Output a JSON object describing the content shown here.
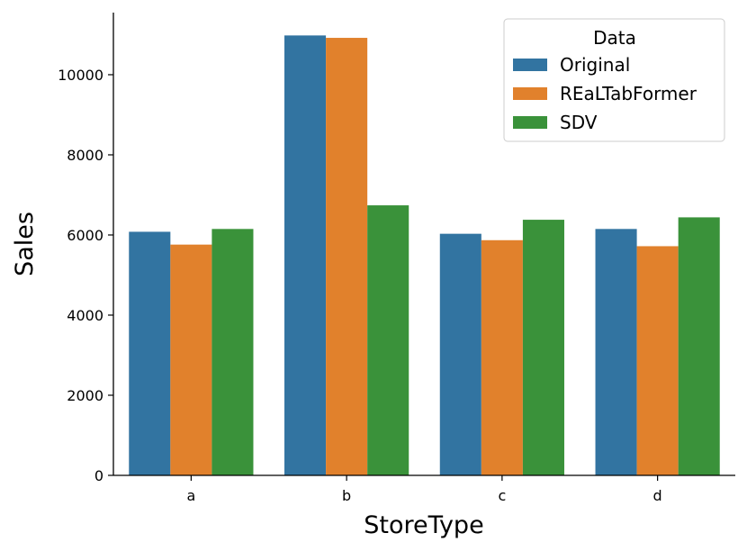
{
  "chart_data": {
    "type": "bar",
    "categories": [
      "a",
      "b",
      "c",
      "d"
    ],
    "series": [
      {
        "name": "Original",
        "color": "#3274a1",
        "values": [
          6080,
          10980,
          6030,
          6150
        ]
      },
      {
        "name": "REaLTabFormer",
        "color": "#e1812c",
        "values": [
          5760,
          10920,
          5870,
          5720
        ]
      },
      {
        "name": "SDV",
        "color": "#3a923a",
        "values": [
          6150,
          6740,
          6380,
          6440
        ]
      }
    ],
    "xlabel": "StoreType",
    "ylabel": "Sales",
    "ylim": [
      0,
      11550
    ],
    "yticks": [
      0,
      2000,
      4000,
      6000,
      8000,
      10000
    ],
    "legend": {
      "title": "Data",
      "placement": "top-right"
    },
    "grid": false
  }
}
